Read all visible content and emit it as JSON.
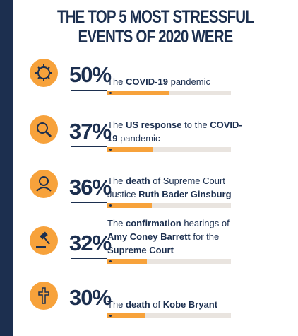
{
  "chart_data": {
    "type": "bar",
    "title": [
      "THE TOP 5 MOST STRESSFUL",
      "EVENTS OF 2020 WERE"
    ],
    "categories": [
      [
        {
          "text": "The "
        },
        {
          "text": "COVID-19",
          "bold": true
        },
        {
          "text": " pandemic"
        }
      ],
      [
        {
          "text": "The "
        },
        {
          "text": "US response",
          "bold": true
        },
        {
          "text": " to the "
        },
        {
          "text": "COVID-19",
          "bold": true
        },
        {
          "text": " pandemic"
        }
      ],
      [
        {
          "text": "The "
        },
        {
          "text": "death",
          "bold": true
        },
        {
          "text": " of Supreme Court Justice "
        },
        {
          "text": "Ruth Bader Ginsburg",
          "bold": true
        }
      ],
      [
        {
          "text": "The "
        },
        {
          "text": "confirmation",
          "bold": true
        },
        {
          "text": " hearings of "
        },
        {
          "text": "Amy Coney Barrett",
          "bold": true
        },
        {
          "text": " for the "
        },
        {
          "text": "Supreme Court",
          "bold": true
        }
      ],
      [
        {
          "text": "The "
        },
        {
          "text": "death",
          "bold": true
        },
        {
          "text": " of "
        },
        {
          "text": "Kobe Bryant",
          "bold": true
        }
      ]
    ],
    "values": [
      50,
      37,
      36,
      32,
      30
    ],
    "value_labels": [
      "50%",
      "37%",
      "36%",
      "32%",
      "30%"
    ],
    "xlim": [
      0,
      100
    ],
    "color": "#f7a23b",
    "track_color": "#e9e4df"
  }
}
